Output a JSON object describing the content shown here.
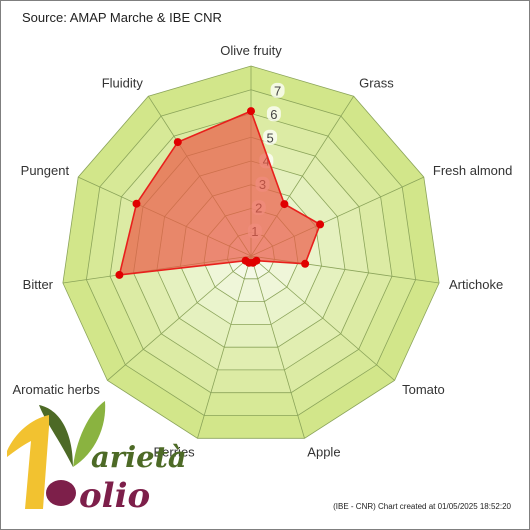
{
  "chart_data": {
    "type": "radar",
    "source": "Source: AMAP Marche & IBE CNR",
    "footer": "(IBE - CNR) Chart created at 01/05/2025 18:52:20",
    "axes": [
      "Olive fruity",
      "Grass",
      "Fresh almond",
      "Artichoke",
      "Tomato",
      "Apple",
      "Berries",
      "Aromatic herbs",
      "Bitter",
      "Pungent",
      "Fluidity"
    ],
    "values": [
      6.1,
      2.6,
      3.2,
      2.3,
      0.3,
      0.3,
      0.3,
      0.3,
      5.6,
      5.3,
      5.7
    ],
    "rmax": 8,
    "ticks": [
      1,
      2,
      3,
      4,
      5,
      6,
      7
    ],
    "colors": {
      "series_stroke": "#e8201c",
      "series_fill": "#ea5a46",
      "marker": "#e00000",
      "band_outer": "#d2e68a",
      "band_inner": "#f4f9e6",
      "grid": "#8ba45a"
    }
  },
  "logo": {
    "line1": "arietà",
    "line2": "olio"
  }
}
